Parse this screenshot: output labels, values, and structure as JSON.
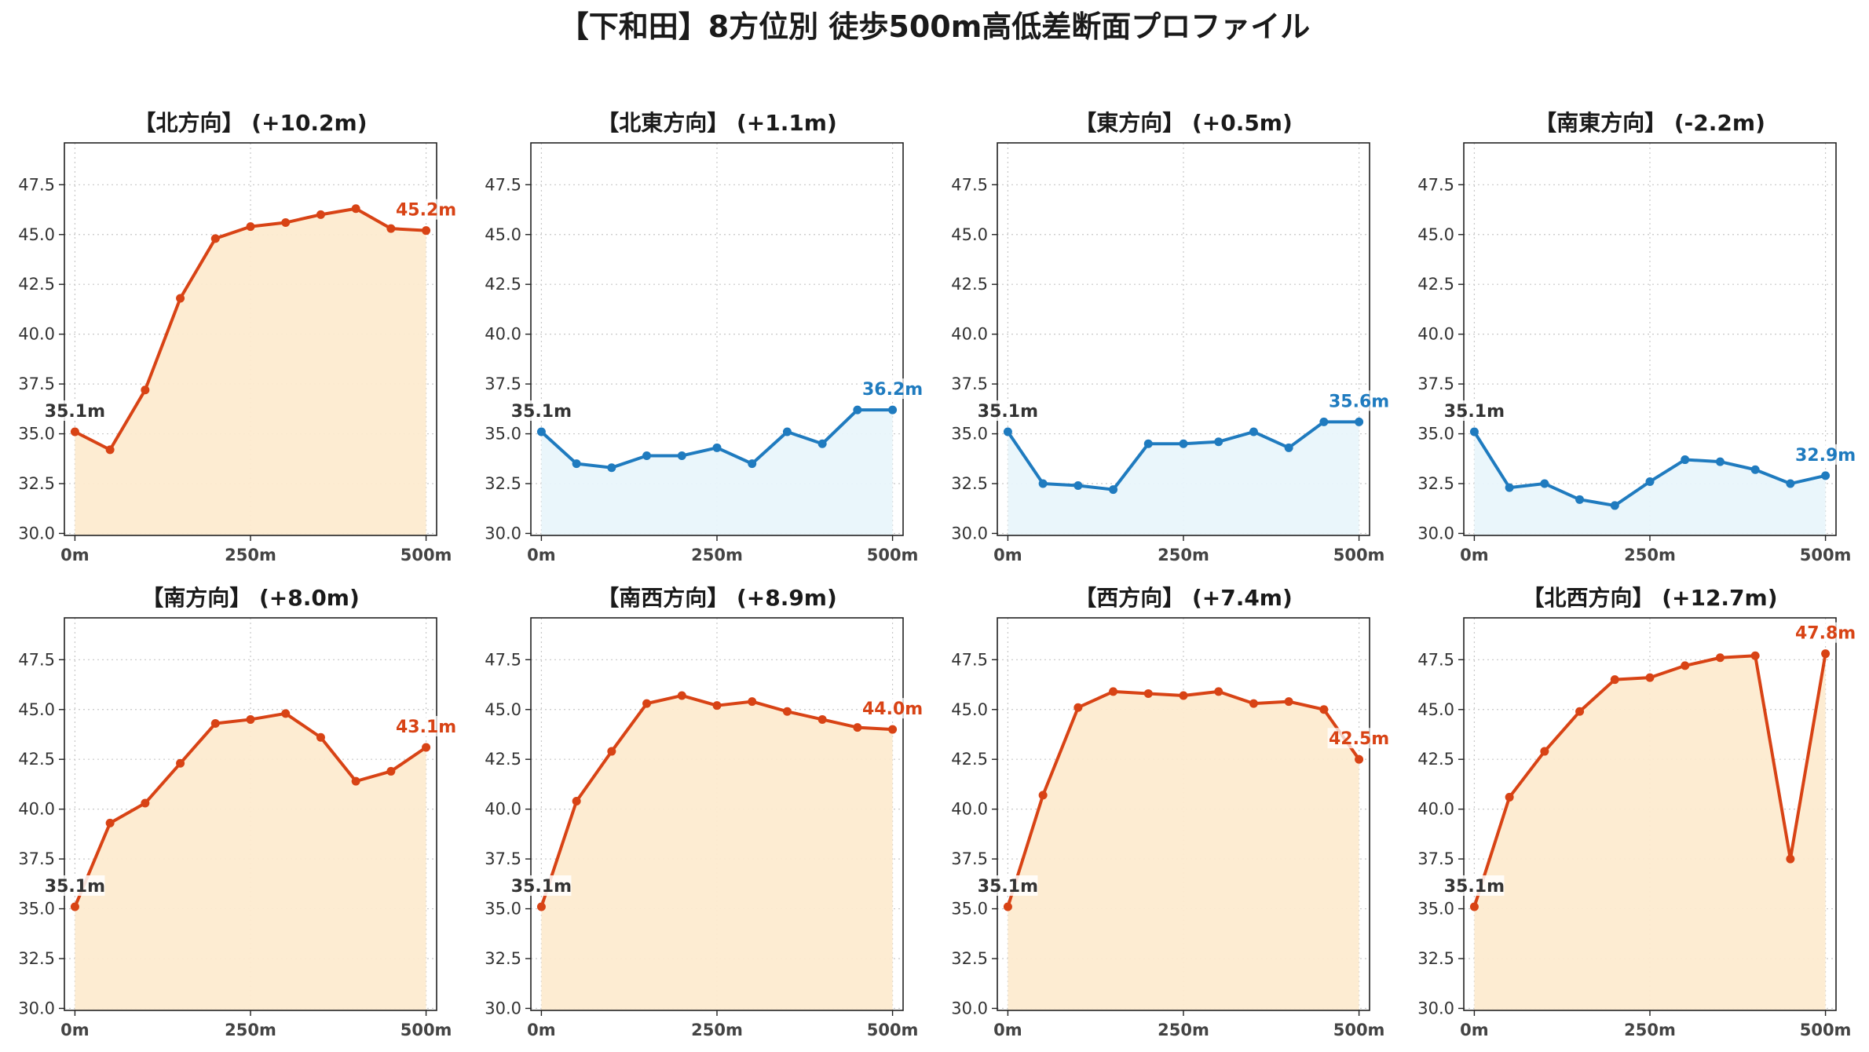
{
  "title": "【下和田】8方位別 徒歩500m高低差断面プロファイル",
  "colors": {
    "uphill_line": "#d84315",
    "uphill_fill": "#fdebd0",
    "downhill_line": "#1f7bbf",
    "downhill_fill": "#e9f5fb",
    "grid": "#c8c8c8",
    "start_label": "#333333"
  },
  "chart_data": [
    {
      "type": "area",
      "title": "【北方向】 (+10.2m)",
      "x": [
        0,
        50,
        100,
        150,
        200,
        250,
        300,
        350,
        400,
        450,
        500
      ],
      "y": [
        35.1,
        34.2,
        37.2,
        41.8,
        44.8,
        45.4,
        45.6,
        46.0,
        46.3,
        45.3,
        45.2
      ],
      "trend": "up",
      "start_label": "35.1m",
      "end_label": "45.2m",
      "xticks": [
        0,
        250,
        500
      ],
      "xtick_labels": [
        "0m",
        "250m",
        "500m"
      ],
      "xlim": [
        -15,
        515
      ],
      "ylim": [
        29.9,
        49.6
      ],
      "yticks": [
        "30.0",
        "32.5",
        "35.0",
        "37.5",
        "40.0",
        "42.5",
        "45.0",
        "47.5"
      ],
      "grid": true
    },
    {
      "type": "area",
      "title": "【北東方向】 (+1.1m)",
      "x": [
        0,
        50,
        100,
        150,
        200,
        250,
        300,
        350,
        400,
        450,
        500
      ],
      "y": [
        35.1,
        33.5,
        33.3,
        33.9,
        33.9,
        34.3,
        33.5,
        35.1,
        34.5,
        36.2,
        36.2
      ],
      "trend": "flat",
      "start_label": "35.1m",
      "end_label": "36.2m",
      "xticks": [
        0,
        250,
        500
      ],
      "xtick_labels": [
        "0m",
        "250m",
        "500m"
      ],
      "xlim": [
        -15,
        515
      ],
      "ylim": [
        29.9,
        49.6
      ],
      "yticks": [
        "30.0",
        "32.5",
        "35.0",
        "37.5",
        "40.0",
        "42.5",
        "45.0",
        "47.5"
      ],
      "grid": true
    },
    {
      "type": "area",
      "title": "【東方向】 (+0.5m)",
      "x": [
        0,
        50,
        100,
        150,
        200,
        250,
        300,
        350,
        400,
        450,
        500
      ],
      "y": [
        35.1,
        32.5,
        32.4,
        32.2,
        34.5,
        34.5,
        34.6,
        35.1,
        34.3,
        35.6,
        35.6
      ],
      "trend": "flat",
      "start_label": "35.1m",
      "end_label": "35.6m",
      "xticks": [
        0,
        250,
        500
      ],
      "xtick_labels": [
        "0m",
        "250m",
        "500m"
      ],
      "xlim": [
        -15,
        515
      ],
      "ylim": [
        29.9,
        49.6
      ],
      "yticks": [
        "30.0",
        "32.5",
        "35.0",
        "37.5",
        "40.0",
        "42.5",
        "45.0",
        "47.5"
      ],
      "grid": true
    },
    {
      "type": "area",
      "title": "【南東方向】 (-2.2m)",
      "x": [
        0,
        50,
        100,
        150,
        200,
        250,
        300,
        350,
        400,
        450,
        500
      ],
      "y": [
        35.1,
        32.3,
        32.5,
        31.7,
        31.4,
        32.6,
        33.7,
        33.6,
        33.2,
        32.5,
        32.9
      ],
      "trend": "down",
      "start_label": "35.1m",
      "end_label": "32.9m",
      "xticks": [
        0,
        250,
        500
      ],
      "xtick_labels": [
        "0m",
        "250m",
        "500m"
      ],
      "xlim": [
        -15,
        515
      ],
      "ylim": [
        29.9,
        49.6
      ],
      "yticks": [
        "30.0",
        "32.5",
        "35.0",
        "37.5",
        "40.0",
        "42.5",
        "45.0",
        "47.5"
      ],
      "grid": true
    },
    {
      "type": "area",
      "title": "【南方向】 (+8.0m)",
      "x": [
        0,
        50,
        100,
        150,
        200,
        250,
        300,
        350,
        400,
        450,
        500
      ],
      "y": [
        35.1,
        39.3,
        40.3,
        42.3,
        44.3,
        44.5,
        44.8,
        43.6,
        41.4,
        41.9,
        43.1
      ],
      "trend": "up",
      "start_label": "35.1m",
      "end_label": "43.1m",
      "xticks": [
        0,
        250,
        500
      ],
      "xtick_labels": [
        "0m",
        "250m",
        "500m"
      ],
      "xlim": [
        -15,
        515
      ],
      "ylim": [
        29.9,
        49.6
      ],
      "yticks": [
        "30.0",
        "32.5",
        "35.0",
        "37.5",
        "40.0",
        "42.5",
        "45.0",
        "47.5"
      ],
      "grid": true
    },
    {
      "type": "area",
      "title": "【南西方向】 (+8.9m)",
      "x": [
        0,
        50,
        100,
        150,
        200,
        250,
        300,
        350,
        400,
        450,
        500
      ],
      "y": [
        35.1,
        40.4,
        42.9,
        45.3,
        45.7,
        45.2,
        45.4,
        44.9,
        44.5,
        44.1,
        44.0
      ],
      "trend": "up",
      "start_label": "35.1m",
      "end_label": "44.0m",
      "xticks": [
        0,
        250,
        500
      ],
      "xtick_labels": [
        "0m",
        "250m",
        "500m"
      ],
      "xlim": [
        -15,
        515
      ],
      "ylim": [
        29.9,
        49.6
      ],
      "yticks": [
        "30.0",
        "32.5",
        "35.0",
        "37.5",
        "40.0",
        "42.5",
        "45.0",
        "47.5"
      ],
      "grid": true
    },
    {
      "type": "area",
      "title": "【西方向】 (+7.4m)",
      "x": [
        0,
        50,
        100,
        150,
        200,
        250,
        300,
        350,
        400,
        450,
        500
      ],
      "y": [
        35.1,
        40.7,
        45.1,
        45.9,
        45.8,
        45.7,
        45.9,
        45.3,
        45.4,
        45.0,
        42.5
      ],
      "trend": "up",
      "start_label": "35.1m",
      "end_label": "42.5m",
      "xticks": [
        0,
        250,
        500
      ],
      "xtick_labels": [
        "0m",
        "250m",
        "500m"
      ],
      "xlim": [
        -15,
        515
      ],
      "ylim": [
        29.9,
        49.6
      ],
      "yticks": [
        "30.0",
        "32.5",
        "35.0",
        "37.5",
        "40.0",
        "42.5",
        "45.0",
        "47.5"
      ],
      "grid": true
    },
    {
      "type": "area",
      "title": "【北西方向】 (+12.7m)",
      "x": [
        0,
        50,
        100,
        150,
        200,
        250,
        300,
        350,
        400,
        450,
        500
      ],
      "y": [
        35.1,
        40.6,
        42.9,
        44.9,
        46.5,
        46.6,
        47.2,
        47.6,
        47.7,
        37.5,
        47.8
      ],
      "trend": "up",
      "start_label": "35.1m",
      "end_label": "47.8m",
      "xticks": [
        0,
        250,
        500
      ],
      "xtick_labels": [
        "0m",
        "250m",
        "500m"
      ],
      "xlim": [
        -15,
        515
      ],
      "ylim": [
        29.9,
        49.6
      ],
      "yticks": [
        "30.0",
        "32.5",
        "35.0",
        "37.5",
        "40.0",
        "42.5",
        "45.0",
        "47.5"
      ],
      "grid": true
    }
  ]
}
